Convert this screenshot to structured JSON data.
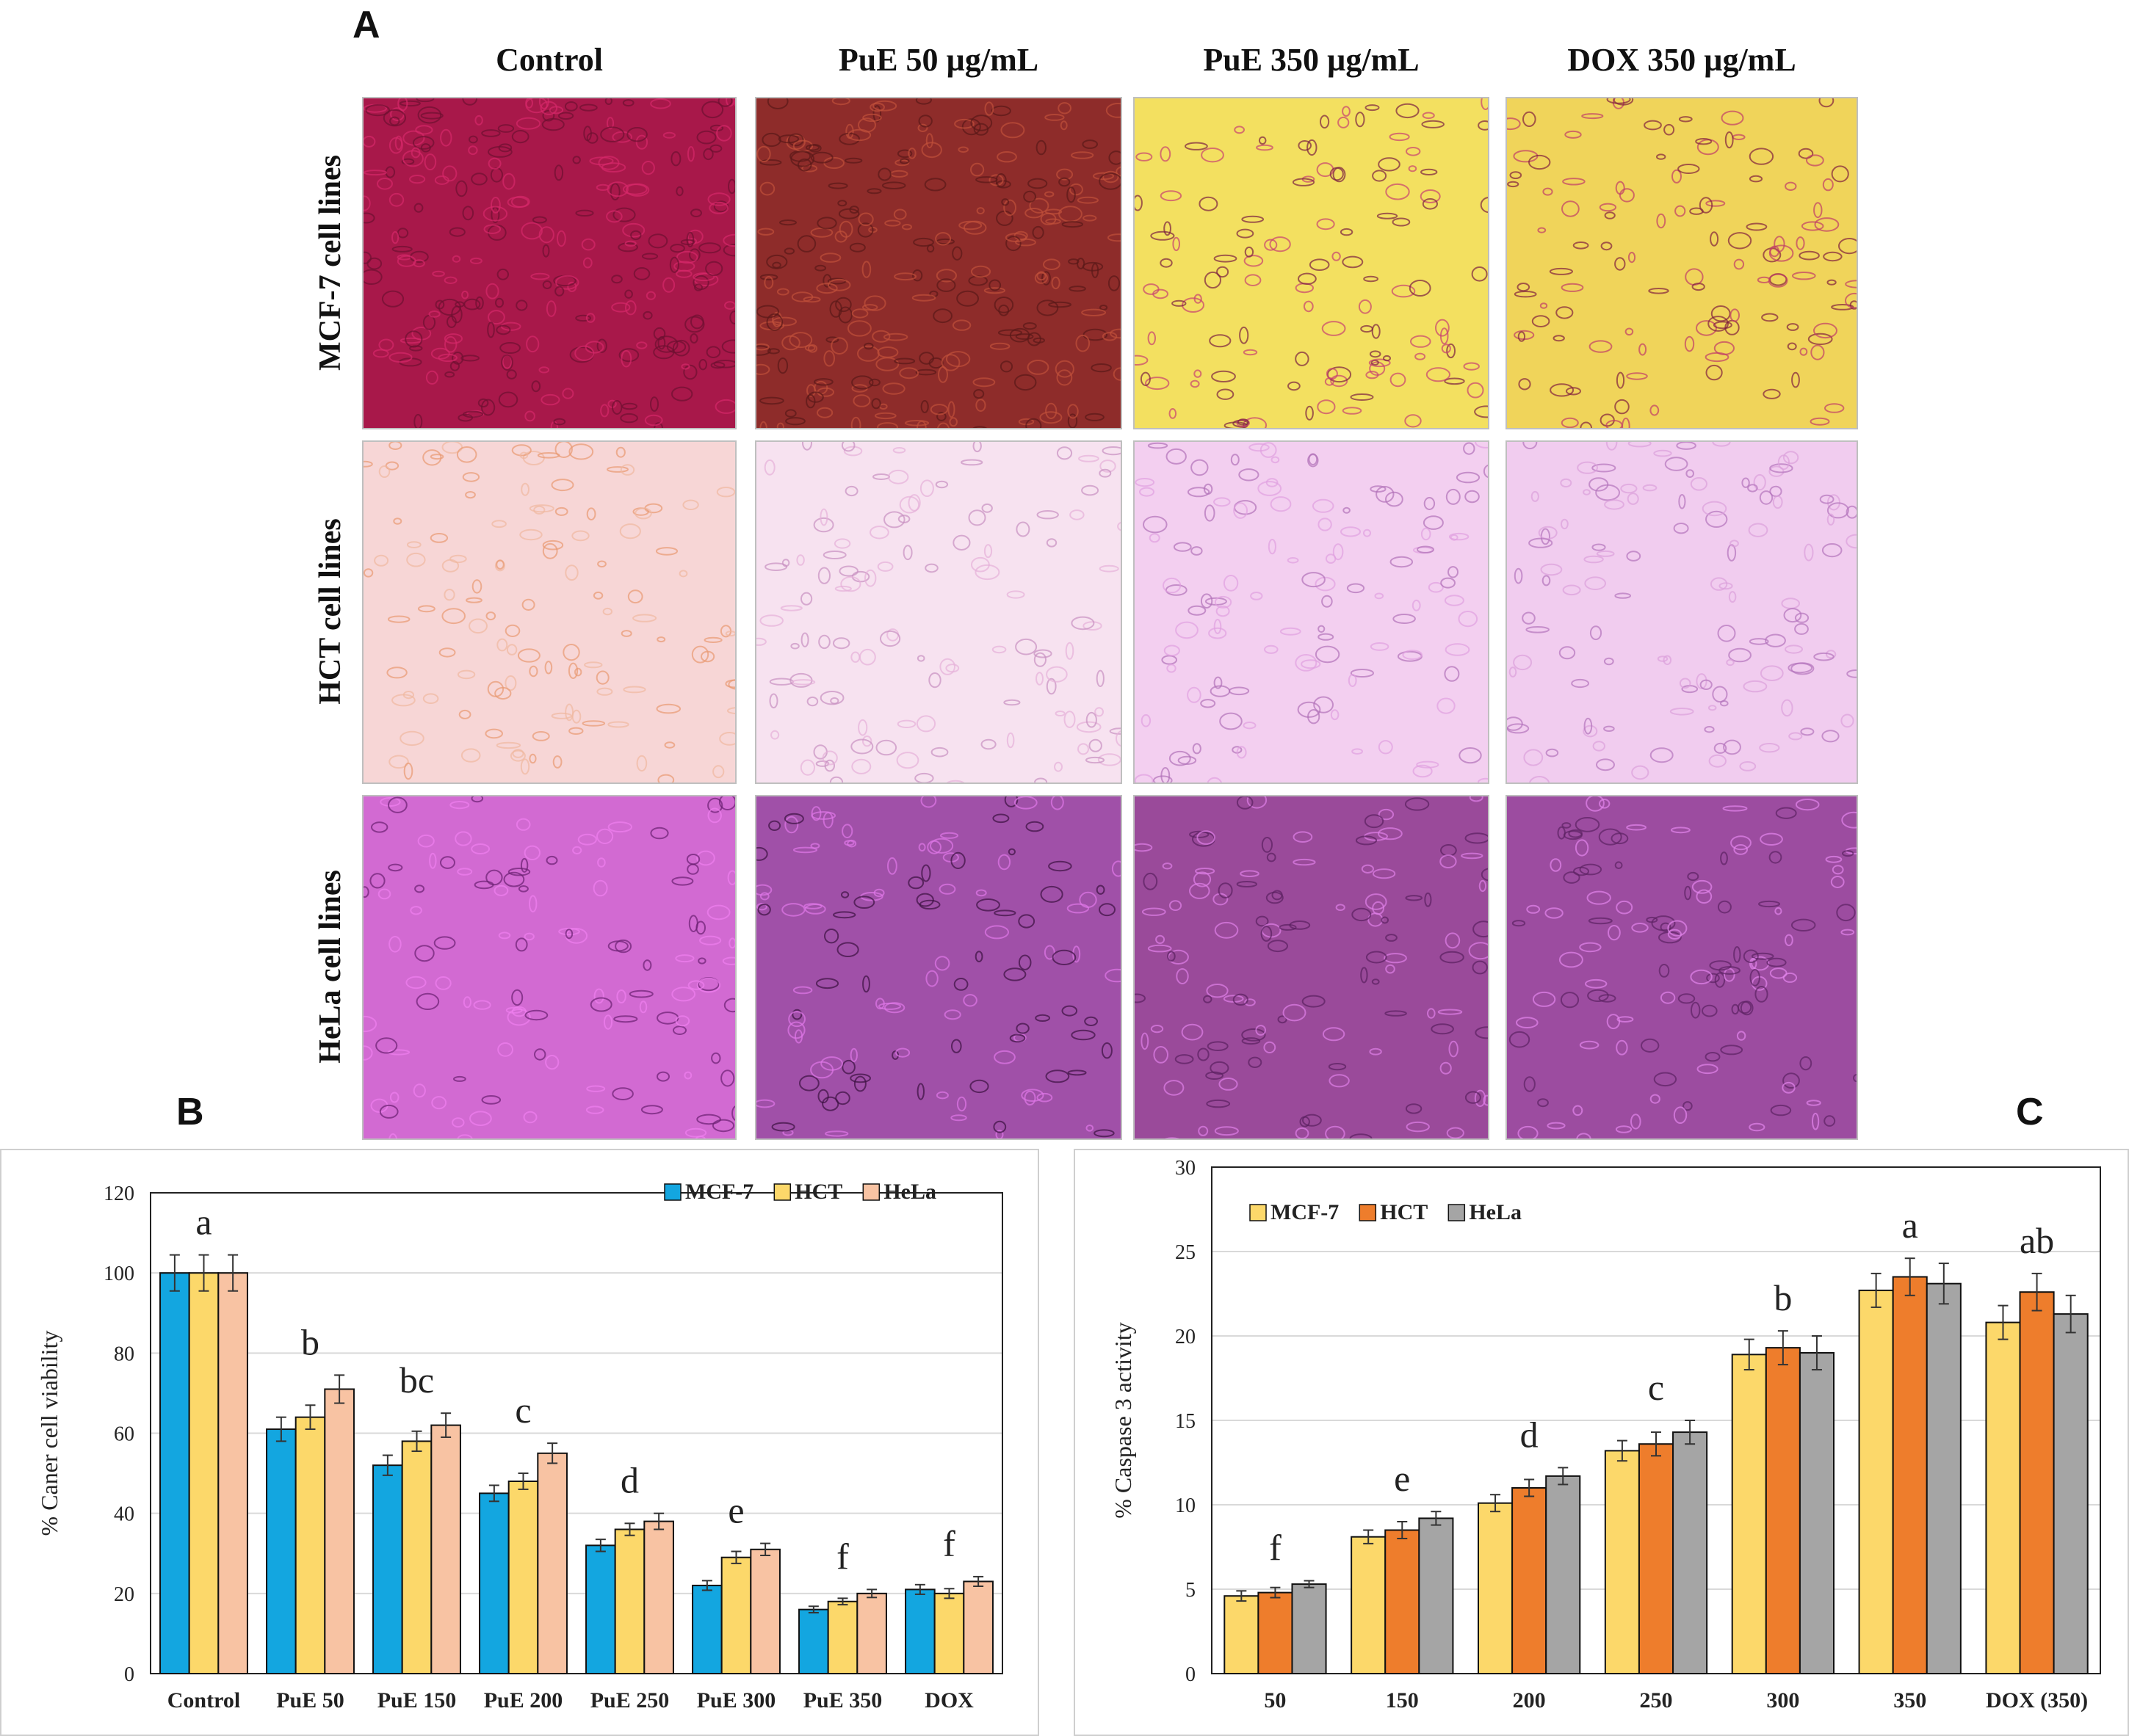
{
  "panel_a": {
    "letter": "A",
    "columns": [
      "Control",
      "PuE 50 µg/mL",
      "PuE 350 µg/mL",
      "DOX 350 µg/mL"
    ],
    "rows": [
      "MCF-7 cell lines",
      "HCT cell lines",
      "HeLa cell lines"
    ],
    "row_colors": [
      [
        "#a8184a",
        "#8e2c2a",
        "#f3e060",
        "#f0d45a"
      ],
      [
        "#f7d6d6",
        "#f7e2f0",
        "#f3cff0",
        "#f1ccef"
      ],
      [
        "#d26ad2",
        "#a050a8",
        "#9a4a9a",
        "#9c4ca0"
      ]
    ]
  },
  "panel_b": {
    "letter": "B"
  },
  "panel_c": {
    "letter": "C"
  },
  "chart_data": [
    {
      "type": "bar",
      "categories": [
        "Control",
        "PuE 50",
        "PuE 150",
        "PuE 200",
        "PuE 250",
        "PuE 300",
        "PuE 350",
        "DOX"
      ],
      "series": [
        {
          "name": "MCF-7",
          "color": "#13a6e0",
          "values": [
            100,
            61,
            52,
            45,
            32,
            22,
            16,
            21
          ],
          "errors": [
            4.5,
            3,
            2.5,
            2,
            1.5,
            1.2,
            0.8,
            1.2
          ]
        },
        {
          "name": "HCT",
          "color": "#fcd86a",
          "values": [
            100,
            64,
            58,
            48,
            36,
            29,
            18,
            20
          ],
          "errors": [
            4.5,
            3,
            2.5,
            2,
            1.5,
            1.5,
            0.8,
            1.2
          ]
        },
        {
          "name": "HeLa",
          "color": "#f8c3a3",
          "values": [
            100,
            71,
            62,
            55,
            38,
            31,
            20,
            23
          ],
          "errors": [
            4.5,
            3.5,
            3,
            2.5,
            2,
            1.5,
            1,
            1.2
          ]
        }
      ],
      "group_labels": [
        "a",
        "b",
        "bc",
        "c",
        "d",
        "e",
        "f",
        "f"
      ],
      "title": "",
      "xlabel": "",
      "ylabel": "% Caner cell viability",
      "ylim": [
        0,
        120
      ],
      "yticks": [
        0,
        20,
        40,
        60,
        80,
        100,
        120
      ],
      "grid": true,
      "legend": "top-right"
    },
    {
      "type": "bar",
      "categories": [
        "50",
        "150",
        "200",
        "250",
        "300",
        "350",
        "DOX (350)"
      ],
      "series": [
        {
          "name": "MCF-7",
          "color": "#fcd86a",
          "values": [
            4.6,
            8.1,
            10.1,
            13.2,
            18.9,
            22.7,
            20.8
          ],
          "errors": [
            0.3,
            0.4,
            0.5,
            0.6,
            0.9,
            1.0,
            1.0
          ]
        },
        {
          "name": "HCT",
          "color": "#ee7d2c",
          "values": [
            4.8,
            8.5,
            11.0,
            13.6,
            19.3,
            23.5,
            22.6
          ],
          "errors": [
            0.3,
            0.5,
            0.5,
            0.7,
            1.0,
            1.1,
            1.1
          ]
        },
        {
          "name": "HeLa",
          "color": "#a5a5a5",
          "values": [
            5.3,
            9.2,
            11.7,
            14.3,
            19.0,
            23.1,
            21.3
          ],
          "errors": [
            0.2,
            0.4,
            0.5,
            0.7,
            1.0,
            1.2,
            1.1
          ]
        }
      ],
      "group_labels": [
        "f",
        "e",
        "d",
        "c",
        "b",
        "a",
        "ab"
      ],
      "title": "",
      "xlabel": "",
      "ylabel": "% Caspase 3 activity",
      "ylim": [
        0,
        30
      ],
      "yticks": [
        0,
        5,
        10,
        15,
        20,
        25,
        30
      ],
      "grid": true,
      "legend": "top-left"
    }
  ]
}
